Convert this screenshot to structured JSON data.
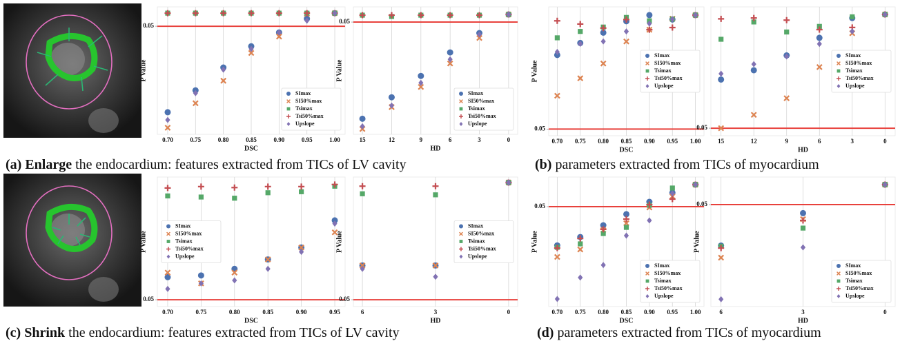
{
  "chart_data": [
    {
      "type": "scatter",
      "xlabel": "DSC",
      "ylabel": "P Value",
      "yscale": "log",
      "grid": true,
      "legend": "lower right",
      "reference_line": 0.05,
      "reference_color": "#e8413c",
      "categories": [
        "0.70",
        "0.75",
        "0.80",
        "0.85",
        "0.90",
        "0.95",
        "1.00"
      ],
      "ylim": [
        8.9e-13,
        4.2
      ],
      "yticks": [
        0.05
      ],
      "series": [
        {
          "name": "SImax",
          "color": "#4c72b0",
          "marker": "o",
          "values": [
            1.4e-10,
            2.1e-08,
            3.9e-06,
            0.00051,
            0.012,
            0.28,
            1
          ]
        },
        {
          "name": "SI50%max",
          "color": "#dd8452",
          "marker": "x",
          "values": [
            4e-12,
            1.1e-09,
            1.9e-07,
            0.00011,
            0.0047,
            0.85,
            1
          ]
        },
        {
          "name": "Tsimax",
          "color": "#55a868",
          "marker": "s",
          "values": [
            1,
            1,
            1,
            1,
            1,
            1,
            1
          ]
        },
        {
          "name": "Tsi50%max",
          "color": "#c44e52",
          "marker": "+",
          "values": [
            1,
            1,
            1,
            1,
            1,
            1,
            1
          ]
        },
        {
          "name": "Upslope",
          "color": "#8172b3",
          "marker": "D",
          "values": [
            2.4e-11,
            1.1e-08,
            2.4e-06,
            0.00028,
            0.012,
            0.18,
            1
          ]
        }
      ]
    },
    {
      "type": "scatter",
      "xlabel": "HD",
      "ylabel": "P Value",
      "yscale": "log",
      "grid": true,
      "legend": "lower right",
      "reference_line": 0.05,
      "reference_color": "#e8413c",
      "categories": [
        "15",
        "12",
        "9",
        "6",
        "3",
        "0"
      ],
      "ylim": [
        3e-21,
        20
      ],
      "yticks": [
        0.05
      ],
      "series": [
        {
          "name": "SImax",
          "color": "#4c72b0",
          "marker": "o",
          "values": [
            1.4e-18,
            6.6e-15,
            3e-11,
            3.2e-07,
            0.00065,
            1
          ]
        },
        {
          "name": "SI50%max",
          "color": "#dd8452",
          "marker": "x",
          "values": [
            2.5e-20,
            1.4e-16,
            3.9e-13,
            4.1e-09,
            9.5e-05,
            1
          ]
        },
        {
          "name": "Tsimax",
          "color": "#55a868",
          "marker": "s",
          "values": [
            0.76,
            0.45,
            0.76,
            0.76,
            0.76,
            1
          ]
        },
        {
          "name": "Tsi50%max",
          "color": "#c44e52",
          "marker": "+",
          "values": [
            0.76,
            0.76,
            0.76,
            0.76,
            0.76,
            1
          ]
        },
        {
          "name": "Upslope",
          "color": "#8172b3",
          "marker": "D",
          "values": [
            7e-20,
            2.5e-16,
            2e-12,
            2.1e-08,
            0.00037,
            1
          ]
        }
      ]
    },
    {
      "type": "scatter",
      "xlabel": "DSC",
      "ylabel": "P Value",
      "yscale": "log",
      "grid": true,
      "legend": "center right",
      "reference_line": 0.05,
      "reference_color": "#e8413c",
      "categories": [
        "0.70",
        "0.75",
        "0.80",
        "0.85",
        "0.90",
        "0.95",
        "1.00"
      ],
      "ylim": [
        0.042,
        1.24
      ],
      "yticks": [
        0.05
      ],
      "series": [
        {
          "name": "SImax",
          "color": "#4c72b0",
          "marker": "o",
          "values": [
            0.35,
            0.48,
            0.63,
            0.85,
            1,
            0.89,
            1
          ]
        },
        {
          "name": "SI50%max",
          "color": "#dd8452",
          "marker": "x",
          "values": [
            0.12,
            0.19,
            0.28,
            0.5,
            0.68,
            0.91,
            1
          ]
        },
        {
          "name": "Tsimax",
          "color": "#55a868",
          "marker": "s",
          "values": [
            0.55,
            0.65,
            0.73,
            0.94,
            0.86,
            0.9,
            1
          ]
        },
        {
          "name": "Tsi50%max",
          "color": "#c44e52",
          "marker": "+",
          "values": [
            0.86,
            0.79,
            0.71,
            0.89,
            0.68,
            0.72,
            1
          ]
        },
        {
          "name": "Upslope",
          "color": "#8172b3",
          "marker": "D",
          "values": [
            0.38,
            0.47,
            0.5,
            0.65,
            0.8,
            0.9,
            1
          ]
        }
      ]
    },
    {
      "type": "scatter",
      "xlabel": "HD",
      "yscale": "log",
      "grid": true,
      "legend": "center right",
      "reference_line": 0.05,
      "reference_color": "#e8413c",
      "categories": [
        "15",
        "12",
        "9",
        "6",
        "3",
        "0"
      ],
      "ylim": [
        0.041,
        1.22
      ],
      "yticks": [
        0.05
      ],
      "series": [
        {
          "name": "SImax",
          "color": "#4c72b0",
          "marker": "o",
          "values": [
            0.18,
            0.23,
            0.34,
            0.54,
            0.91,
            1
          ]
        },
        {
          "name": "SI50%max",
          "color": "#dd8452",
          "marker": "x",
          "values": [
            0.05,
            0.071,
            0.11,
            0.25,
            0.61,
            1
          ]
        },
        {
          "name": "Tsimax",
          "color": "#55a868",
          "marker": "s",
          "values": [
            0.52,
            0.82,
            0.63,
            0.73,
            0.94,
            1
          ]
        },
        {
          "name": "Tsi50%max",
          "color": "#c44e52",
          "marker": "+",
          "values": [
            0.89,
            0.91,
            0.86,
            0.67,
            0.71,
            1
          ]
        },
        {
          "name": "Upslope",
          "color": "#8172b3",
          "marker": "D",
          "values": [
            0.21,
            0.27,
            0.33,
            0.46,
            0.64,
            1
          ]
        }
      ]
    },
    {
      "type": "scatter",
      "xlabel": "DSC",
      "ylabel": "P Value",
      "yscale": "log",
      "grid": true,
      "legend": "center left",
      "reference_line": 0.05,
      "reference_color": "#e8413c",
      "categories": [
        "0.70",
        "0.75",
        "0.80",
        "0.85",
        "0.90",
        "0.95"
      ],
      "ylim": [
        0.042,
        1.15
      ],
      "yticks": [
        0.05
      ],
      "series": [
        {
          "name": "SImax",
          "color": "#4c72b0",
          "marker": "o",
          "values": [
            0.089,
            0.093,
            0.11,
            0.14,
            0.19,
            0.38
          ]
        },
        {
          "name": "SI50%max",
          "color": "#dd8452",
          "marker": "x",
          "values": [
            0.1,
            0.076,
            0.1,
            0.14,
            0.19,
            0.28
          ]
        },
        {
          "name": "Tsimax",
          "color": "#55a868",
          "marker": "s",
          "values": [
            0.71,
            0.69,
            0.67,
            0.77,
            0.79,
            0.91
          ]
        },
        {
          "name": "Tsi50%max",
          "color": "#c44e52",
          "marker": "+",
          "values": [
            0.87,
            0.9,
            0.88,
            0.9,
            0.9,
            0.95
          ]
        },
        {
          "name": "Upslope",
          "color": "#8172b3",
          "marker": "D",
          "values": [
            0.066,
            0.076,
            0.082,
            0.11,
            0.17,
            0.35
          ]
        }
      ]
    },
    {
      "type": "scatter",
      "xlabel": "HD",
      "ylabel": "P Value",
      "yscale": "log",
      "grid": true,
      "legend": "center right",
      "reference_line": 0.05,
      "reference_color": "#e8413c",
      "categories": [
        "6",
        "3",
        "0"
      ],
      "ylim": [
        0.042,
        1.15
      ],
      "yticks": [
        0.05
      ],
      "series": [
        {
          "name": "SImax",
          "color": "#4c72b0",
          "marker": "o",
          "values": [
            0.12,
            0.12,
            1
          ]
        },
        {
          "name": "SI50%max",
          "color": "#dd8452",
          "marker": "x",
          "values": [
            0.12,
            0.12,
            1
          ]
        },
        {
          "name": "Tsimax",
          "color": "#55a868",
          "marker": "s",
          "values": [
            0.75,
            0.73,
            1
          ]
        },
        {
          "name": "Tsi50%max",
          "color": "#c44e52",
          "marker": "+",
          "values": [
            0.91,
            0.91,
            1
          ]
        },
        {
          "name": "Upslope",
          "color": "#8172b3",
          "marker": "D",
          "values": [
            0.11,
            0.09,
            1
          ]
        }
      ]
    },
    {
      "type": "scatter",
      "xlabel": "DSC",
      "ylabel": "P Value",
      "yscale": "log",
      "grid": true,
      "legend": "lower right",
      "reference_line": 0.05,
      "reference_color": "#e8413c",
      "categories": [
        "0.70",
        "0.75",
        "0.80",
        "0.85",
        "0.90",
        "0.95",
        "1.00"
      ],
      "ylim": [
        6.4e-08,
        2.8
      ],
      "yticks": [
        0.05
      ],
      "series": [
        {
          "name": "SImax",
          "color": "#4c72b0",
          "marker": "o",
          "values": [
            0.00026,
            0.00081,
            0.004,
            0.018,
            0.096,
            0.33,
            1
          ]
        },
        {
          "name": "SI50%max",
          "color": "#dd8452",
          "marker": "x",
          "values": [
            5.4e-05,
            0.00015,
            0.0021,
            0.0053,
            0.045,
            0.2,
            1
          ]
        },
        {
          "name": "Tsimax",
          "color": "#55a868",
          "marker": "s",
          "values": [
            0.0002,
            0.00032,
            0.0013,
            0.003,
            0.06,
            0.63,
            1
          ]
        },
        {
          "name": "Tsi50%max",
          "color": "#c44e52",
          "marker": "+",
          "values": [
            0.00018,
            0.00067,
            0.0023,
            0.0093,
            0.066,
            0.14,
            1
          ]
        },
        {
          "name": "Upslope",
          "color": "#8172b3",
          "marker": "D",
          "values": [
            1.8e-07,
            3.3e-06,
            1.8e-05,
            0.00098,
            0.0077,
            0.3,
            1
          ]
        }
      ]
    },
    {
      "type": "scatter",
      "xlabel": "HD",
      "ylabel": "P Value",
      "yscale": "log",
      "grid": true,
      "legend": "lower right",
      "reference_line": 0.05,
      "reference_color": "#e8413c",
      "categories": [
        "6",
        "3",
        "0"
      ],
      "ylim": [
        1.2e-08,
        3.1
      ],
      "yticks": [
        0.05
      ],
      "series": [
        {
          "name": "SImax",
          "color": "#4c72b0",
          "marker": "o",
          "values": [
            0.00011,
            0.014,
            1
          ]
        },
        {
          "name": "SI50%max",
          "color": "#dd8452",
          "marker": "x",
          "values": [
            1.8e-05,
            0.0057,
            1
          ]
        },
        {
          "name": "Tsimax",
          "color": "#55a868",
          "marker": "s",
          "values": [
            0.0001,
            0.0015,
            1
          ]
        },
        {
          "name": "Tsi50%max",
          "color": "#c44e52",
          "marker": "+",
          "values": [
            7.5e-05,
            0.0047,
            1
          ]
        },
        {
          "name": "Upslope",
          "color": "#8172b3",
          "marker": "D",
          "values": [
            3.6e-08,
            8.3e-05,
            1
          ]
        }
      ]
    }
  ],
  "captions": [
    {
      "label": "(a)",
      "emphasis": "Enlarge",
      "text": "the endocardium: features extracted from TICs of LV cavity"
    },
    {
      "label": "(b)",
      "text": "parameters extracted from TICs of myocardium"
    },
    {
      "label": "(c)",
      "emphasis": "Shrink",
      "text": "the endocardium: features extracted from TICs of LV cavity"
    },
    {
      "label": "(d)",
      "text": "parameters extracted from TICs of myocardium"
    }
  ]
}
